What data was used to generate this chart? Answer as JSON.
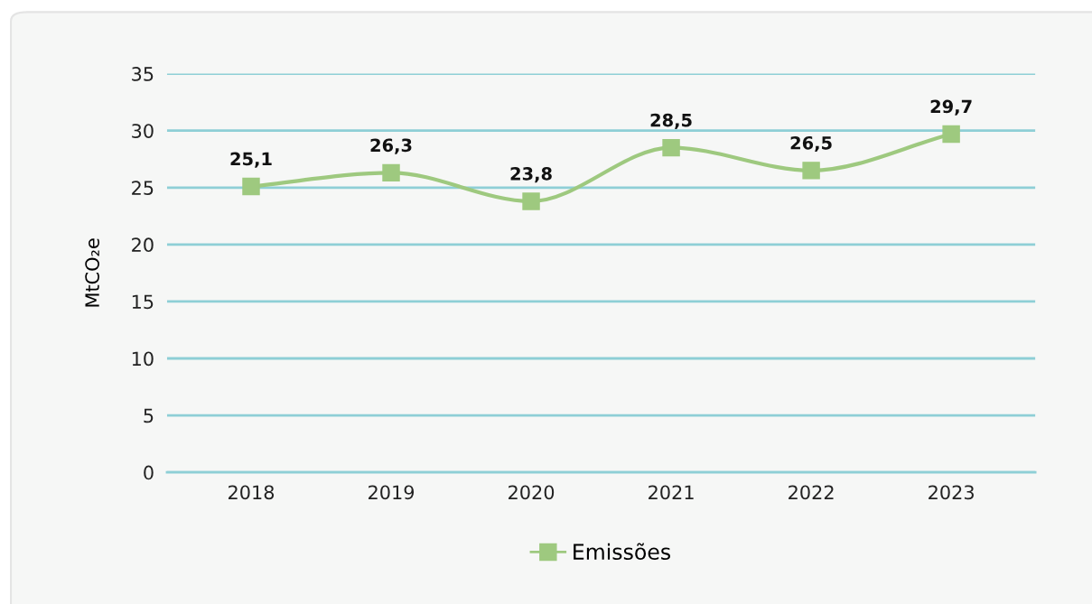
{
  "chart_data": {
    "type": "line",
    "ylabel": "MtCO₂e",
    "categories": [
      "2018",
      "2019",
      "2020",
      "2021",
      "2022",
      "2023"
    ],
    "series": [
      {
        "name": "Emissões",
        "color": "#9ec97f",
        "values": [
          25.1,
          26.3,
          23.8,
          28.5,
          26.5,
          29.7
        ],
        "value_labels": [
          "25,1",
          "26,3",
          "23,8",
          "28,5",
          "26,5",
          "29,7"
        ]
      }
    ],
    "ylim": [
      0,
      35
    ],
    "yticks": [
      0,
      5,
      10,
      15,
      20,
      25,
      30,
      35
    ],
    "grid": "y",
    "legend": "bottom",
    "marker": "square",
    "line_style": "solid"
  }
}
